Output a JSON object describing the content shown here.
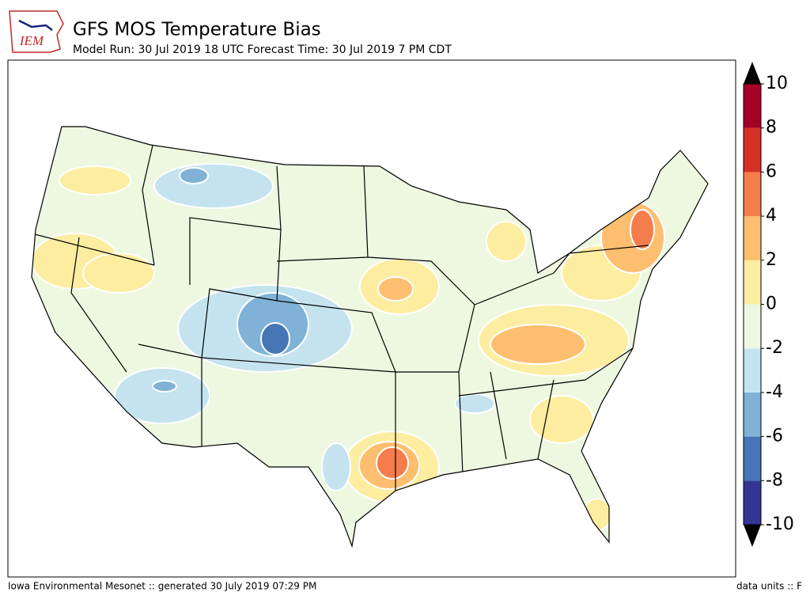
{
  "header": {
    "logo": "IEM",
    "title": "GFS MOS Temperature Bias",
    "subtitle": "Model Run: 30 Jul 2019 18 UTC Forecast Time: 30 Jul 2019 7 PM CDT"
  },
  "colorbar": {
    "lim": [
      -10,
      10
    ],
    "ticks": [
      -10,
      -8,
      -6,
      -4,
      -2,
      0,
      2,
      4,
      6,
      8,
      10
    ],
    "colors": [
      "#313695",
      "#4575b4",
      "#7fb2d6",
      "#c4e3ef",
      "#eef7e0",
      "#fdeda0",
      "#fdbe6f",
      "#f57d4b",
      "#d73027",
      "#a50026"
    ],
    "extend_color": "#000000"
  },
  "footer": {
    "left": "Iowa Environmental Mesonet :: generated 30 July 2019 07:29 PM",
    "right": "data units :: F"
  }
}
